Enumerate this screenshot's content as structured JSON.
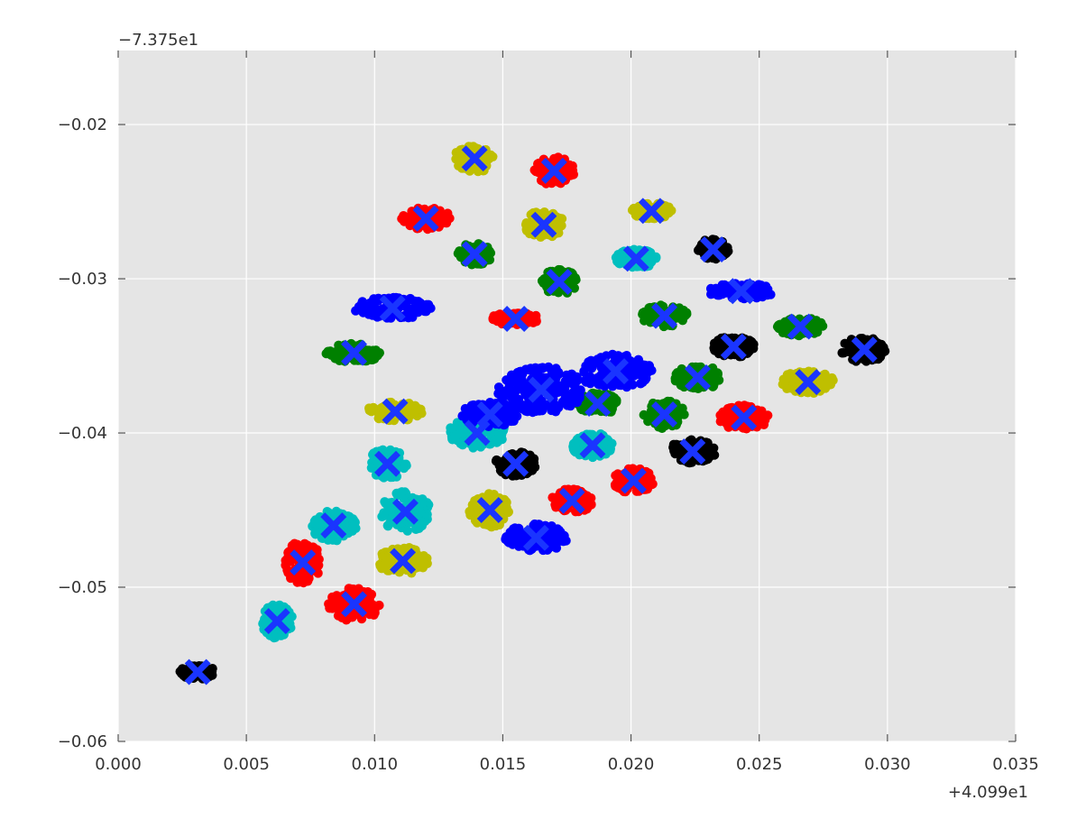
{
  "chart_data": {
    "type": "scatter",
    "title": "",
    "xlabel": "",
    "ylabel": "",
    "xlim": [
      0.0,
      0.035
    ],
    "ylim": [
      -0.06,
      -0.0152
    ],
    "x_ticks": [
      "0.000",
      "0.005",
      "0.010",
      "0.015",
      "0.020",
      "0.025",
      "0.030",
      "0.035"
    ],
    "y_ticks": [
      "−0.02",
      "−0.03",
      "−0.04",
      "−0.05",
      "−0.06"
    ],
    "x_offset_label": "+4.099e1",
    "y_offset_label": "−7.375e1",
    "grid": true,
    "background_color": "#e5e5e5",
    "cluster_colors": [
      "#ff0000",
      "#bfbf00",
      "#008000",
      "#00bfbf",
      "#0000ff",
      "#000000"
    ],
    "centroid_color": "#1a35ff",
    "centroid_marker": "x",
    "clusters": [
      {
        "color": "#000000",
        "spread": [
          0.0014,
          0.0009
        ],
        "centroid": [
          0.0031,
          -0.0555
        ]
      },
      {
        "color": "#00bfbf",
        "spread": [
          0.0012,
          0.0022
        ],
        "centroid": [
          0.0062,
          -0.0522
        ]
      },
      {
        "color": "#ff0000",
        "spread": [
          0.0014,
          0.0028
        ],
        "centroid": [
          0.0072,
          -0.0484
        ]
      },
      {
        "color": "#ff0000",
        "spread": [
          0.002,
          0.0022
        ],
        "centroid": [
          0.0092,
          -0.0511
        ]
      },
      {
        "color": "#00bfbf",
        "spread": [
          0.0018,
          0.002
        ],
        "centroid": [
          0.0084,
          -0.046
        ]
      },
      {
        "color": "#bfbf00",
        "spread": [
          0.002,
          0.0018
        ],
        "centroid": [
          0.0111,
          -0.0483
        ]
      },
      {
        "color": "#00bfbf",
        "spread": [
          0.002,
          0.0026
        ],
        "centroid": [
          0.0112,
          -0.0451
        ]
      },
      {
        "color": "#00bfbf",
        "spread": [
          0.0016,
          0.002
        ],
        "centroid": [
          0.0105,
          -0.042
        ]
      },
      {
        "color": "#bfbf00",
        "spread": [
          0.0022,
          0.0012
        ],
        "centroid": [
          0.0108,
          -0.0386
        ]
      },
      {
        "color": "#00bfbf",
        "spread": [
          0.0022,
          0.002
        ],
        "centroid": [
          0.014,
          -0.04
        ]
      },
      {
        "color": "#bfbf00",
        "spread": [
          0.0016,
          0.0022
        ],
        "centroid": [
          0.0145,
          -0.045
        ]
      },
      {
        "color": "#000000",
        "spread": [
          0.0016,
          0.0016
        ],
        "centroid": [
          0.0155,
          -0.042
        ]
      },
      {
        "color": "#0000ff",
        "spread": [
          0.0024,
          0.0018
        ],
        "centroid": [
          0.0163,
          -0.0468
        ]
      },
      {
        "color": "#ff0000",
        "spread": [
          0.0016,
          0.0016
        ],
        "centroid": [
          0.0177,
          -0.0444
        ]
      },
      {
        "color": "#ff0000",
        "spread": [
          0.0016,
          0.0016
        ],
        "centroid": [
          0.0201,
          -0.0431
        ]
      },
      {
        "color": "#00bfbf",
        "spread": [
          0.0016,
          0.0016
        ],
        "centroid": [
          0.0185,
          -0.0408
        ]
      },
      {
        "color": "#008000",
        "spread": [
          0.0016,
          0.0014
        ],
        "centroid": [
          0.0187,
          -0.0381
        ]
      },
      {
        "color": "#0000ff",
        "spread": [
          0.0034,
          0.003
        ],
        "centroid": [
          0.0165,
          -0.0372
        ]
      },
      {
        "color": "#0000ff",
        "spread": [
          0.0022,
          0.0016
        ],
        "centroid": [
          0.0145,
          -0.0388
        ]
      },
      {
        "color": "#0000ff",
        "spread": [
          0.003,
          0.0022
        ],
        "centroid": [
          0.0194,
          -0.036
        ]
      },
      {
        "color": "#008000",
        "spread": [
          0.0016,
          0.0018
        ],
        "centroid": [
          0.0213,
          -0.0388
        ]
      },
      {
        "color": "#000000",
        "spread": [
          0.0018,
          0.0016
        ],
        "centroid": [
          0.0224,
          -0.0412
        ]
      },
      {
        "color": "#ff0000",
        "spread": [
          0.002,
          0.0016
        ],
        "centroid": [
          0.0244,
          -0.039
        ]
      },
      {
        "color": "#008000",
        "spread": [
          0.0018,
          0.0016
        ],
        "centroid": [
          0.0226,
          -0.0364
        ]
      },
      {
        "color": "#000000",
        "spread": [
          0.0016,
          0.0014
        ],
        "centroid": [
          0.024,
          -0.0344
        ]
      },
      {
        "color": "#bfbf00",
        "spread": [
          0.002,
          0.0016
        ],
        "centroid": [
          0.0269,
          -0.0367
        ]
      },
      {
        "color": "#008000",
        "spread": [
          0.0018,
          0.0012
        ],
        "centroid": [
          0.0266,
          -0.0331
        ]
      },
      {
        "color": "#000000",
        "spread": [
          0.0018,
          0.0016
        ],
        "centroid": [
          0.0291,
          -0.0346
        ]
      },
      {
        "color": "#008000",
        "spread": [
          0.0018,
          0.0014
        ],
        "centroid": [
          0.0213,
          -0.0324
        ]
      },
      {
        "color": "#0000ff",
        "spread": [
          0.0026,
          0.001
        ],
        "centroid": [
          0.0243,
          -0.0308
        ]
      },
      {
        "color": "#000000",
        "spread": [
          0.0012,
          0.0014
        ],
        "centroid": [
          0.0232,
          -0.0281
        ]
      },
      {
        "color": "#bfbf00",
        "spread": [
          0.0016,
          0.001
        ],
        "centroid": [
          0.0208,
          -0.0256
        ]
      },
      {
        "color": "#00bfbf",
        "spread": [
          0.0016,
          0.0012
        ],
        "centroid": [
          0.0202,
          -0.0287
        ]
      },
      {
        "color": "#008000",
        "spread": [
          0.0014,
          0.0016
        ],
        "centroid": [
          0.0172,
          -0.0302
        ]
      },
      {
        "color": "#bfbf00",
        "spread": [
          0.0016,
          0.0018
        ],
        "centroid": [
          0.0166,
          -0.0265
        ]
      },
      {
        "color": "#ff0000",
        "spread": [
          0.0016,
          0.0018
        ],
        "centroid": [
          0.017,
          -0.023
        ]
      },
      {
        "color": "#bfbf00",
        "spread": [
          0.0016,
          0.0018
        ],
        "centroid": [
          0.0139,
          -0.0222
        ]
      },
      {
        "color": "#008000",
        "spread": [
          0.0014,
          0.0014
        ],
        "centroid": [
          0.0139,
          -0.0284
        ]
      },
      {
        "color": "#ff0000",
        "spread": [
          0.002,
          0.0014
        ],
        "centroid": [
          0.012,
          -0.0261
        ]
      },
      {
        "color": "#ff0000",
        "spread": [
          0.002,
          0.0008
        ],
        "centroid": [
          0.0155,
          -0.0326
        ]
      },
      {
        "color": "#0000ff",
        "spread": [
          0.003,
          0.0014
        ],
        "centroid": [
          0.0107,
          -0.0319
        ]
      },
      {
        "color": "#008000",
        "spread": [
          0.0022,
          0.0012
        ],
        "centroid": [
          0.0092,
          -0.0348
        ]
      }
    ]
  }
}
